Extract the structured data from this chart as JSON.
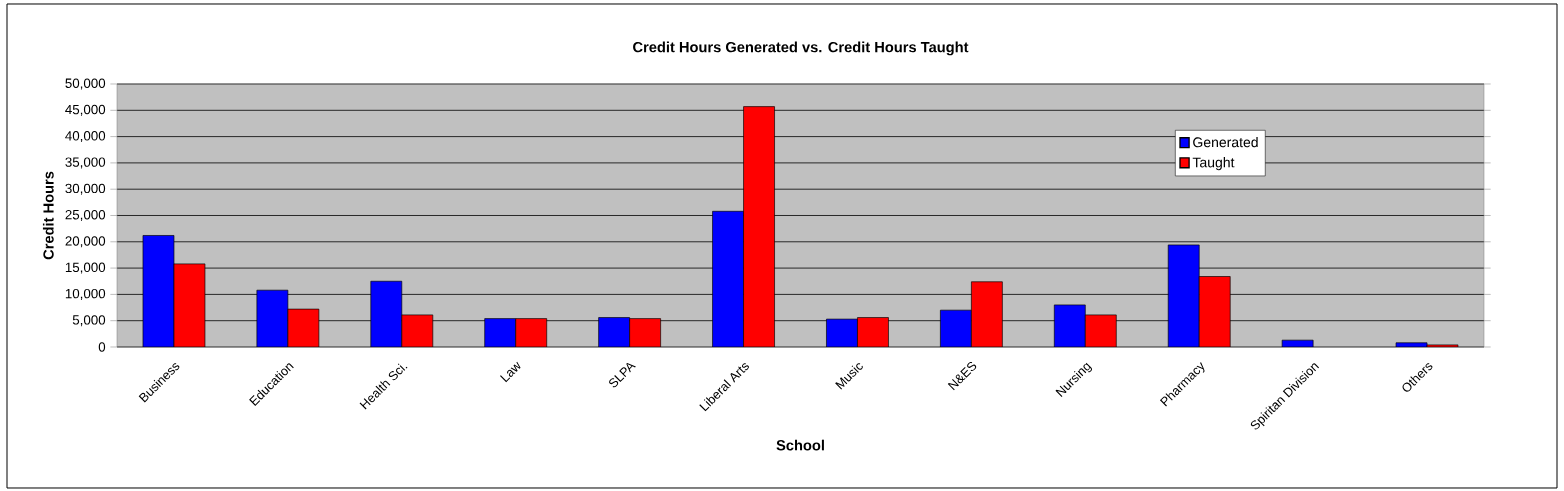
{
  "chart_data": {
    "type": "bar",
    "title": "Credit Hours Generated vs. Credit Hours Taught",
    "xlabel": "School",
    "ylabel": "Credit Hours",
    "categories": [
      "Business",
      "Education",
      "Health Sci.",
      "Law",
      "SLPA",
      "Liberal Arts",
      "Music",
      "N&ES",
      "Nursing",
      "Pharmacy",
      "Spiritan Division",
      "Others"
    ],
    "series": [
      {
        "name": "Generated",
        "color": "#0000ff",
        "values": [
          21200,
          10800,
          12500,
          5400,
          5600,
          25800,
          5300,
          7000,
          8000,
          19400,
          1300,
          800
        ]
      },
      {
        "name": "Taught",
        "color": "#ff0000",
        "values": [
          15800,
          7200,
          6100,
          5400,
          5400,
          45700,
          5600,
          12400,
          6100,
          13400,
          null,
          400
        ]
      }
    ],
    "ylim": [
      0,
      50000
    ],
    "yticks": [
      0,
      {
        "value": 5000,
        "label": "5,000"
      },
      {
        "value": 10000,
        "label": "10,000"
      },
      {
        "value": 15000,
        "label": "15,000"
      },
      {
        "value": 20000,
        "label": "20,000"
      },
      {
        "value": 25000,
        "label": "25,000"
      },
      {
        "value": 30000,
        "label": "30,000"
      },
      {
        "value": 35000,
        "label": "35,000"
      },
      {
        "value": 40000,
        "label": "40,000"
      },
      {
        "value": 45000,
        "label": "45,000"
      },
      {
        "value": 50000,
        "label": "50,000"
      }
    ],
    "grid": "y",
    "legend": "top right"
  }
}
